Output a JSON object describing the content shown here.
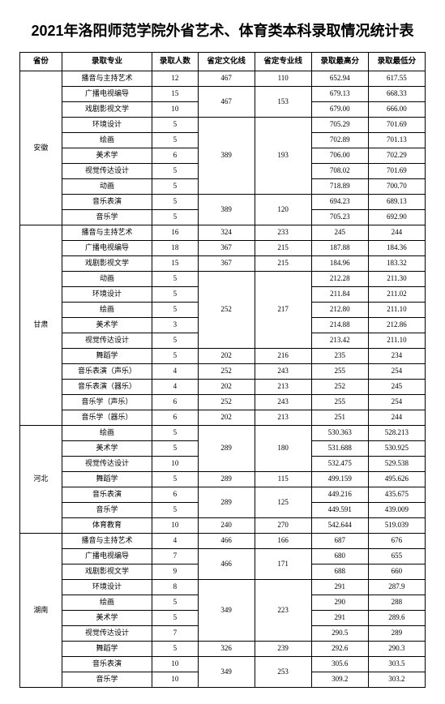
{
  "title": "2021年洛阳师范学院外省艺术、体育类本科录取情况统计表",
  "headers": {
    "province": "省份",
    "major": "录取专业",
    "count": "录取人数",
    "culture": "省定文化线",
    "pro": "省定专业线",
    "high": "录取最高分",
    "low": "录取最低分"
  },
  "provinces": {
    "anhui": "安徽",
    "gansu": "甘肃",
    "hebei": "河北",
    "hunan": "湖南"
  },
  "anhui": [
    {
      "major": "播音与主持艺术",
      "count": "12",
      "culture": "467",
      "pro": "110",
      "high": "652.94",
      "low": "617.55"
    },
    {
      "major": "广播电视编导",
      "count": "15",
      "culture": "467",
      "pro": "153",
      "high": "679.13",
      "low": "668.33"
    },
    {
      "major": "戏剧影视文学",
      "count": "10",
      "culture": "",
      "pro": "",
      "high": "679.00",
      "low": "666.00"
    },
    {
      "major": "环境设计",
      "count": "5",
      "culture": "389",
      "pro": "193",
      "high": "705.29",
      "low": "701.69"
    },
    {
      "major": "绘画",
      "count": "5",
      "culture": "",
      "pro": "",
      "high": "702.89",
      "low": "701.13"
    },
    {
      "major": "美术学",
      "count": "6",
      "culture": "",
      "pro": "",
      "high": "706.00",
      "low": "702.29"
    },
    {
      "major": "视觉传达设计",
      "count": "5",
      "culture": "",
      "pro": "",
      "high": "708.02",
      "low": "701.69"
    },
    {
      "major": "动画",
      "count": "5",
      "culture": "",
      "pro": "",
      "high": "718.89",
      "low": "700.70"
    },
    {
      "major": "音乐表演",
      "count": "5",
      "culture": "389",
      "pro": "120",
      "high": "694.23",
      "low": "689.13"
    },
    {
      "major": "音乐学",
      "count": "5",
      "culture": "",
      "pro": "",
      "high": "705.23",
      "low": "692.90"
    }
  ],
  "gansu": [
    {
      "major": "播音与主持艺术",
      "count": "16",
      "culture": "324",
      "pro": "233",
      "high": "245",
      "low": "244"
    },
    {
      "major": "广播电视编导",
      "count": "18",
      "culture": "367",
      "pro": "215",
      "high": "187.88",
      "low": "184.36"
    },
    {
      "major": "戏剧影视文学",
      "count": "15",
      "culture": "367",
      "pro": "215",
      "high": "184.96",
      "low": "183.32"
    },
    {
      "major": "动画",
      "count": "5",
      "culture": "252",
      "pro": "217",
      "high": "212.28",
      "low": "211.30"
    },
    {
      "major": "环境设计",
      "count": "5",
      "culture": "",
      "pro": "",
      "high": "211.84",
      "low": "211.02"
    },
    {
      "major": "绘画",
      "count": "5",
      "culture": "",
      "pro": "",
      "high": "212.80",
      "low": "211.10"
    },
    {
      "major": "美术学",
      "count": "3",
      "culture": "",
      "pro": "",
      "high": "214.88",
      "low": "212.86"
    },
    {
      "major": "视觉传达设计",
      "count": "5",
      "culture": "",
      "pro": "",
      "high": "213.42",
      "low": "211.10"
    },
    {
      "major": "舞蹈学",
      "count": "5",
      "culture": "202",
      "pro": "216",
      "high": "235",
      "low": "234"
    },
    {
      "major": "音乐表演（声乐）",
      "count": "4",
      "culture": "252",
      "pro": "243",
      "high": "255",
      "low": "254"
    },
    {
      "major": "音乐表演（器乐）",
      "count": "4",
      "culture": "202",
      "pro": "213",
      "high": "252",
      "low": "245"
    },
    {
      "major": "音乐学（声乐）",
      "count": "6",
      "culture": "252",
      "pro": "243",
      "high": "255",
      "low": "254"
    },
    {
      "major": "音乐学（器乐）",
      "count": "6",
      "culture": "202",
      "pro": "213",
      "high": "251",
      "low": "244"
    }
  ],
  "hebei": [
    {
      "major": "绘画",
      "count": "5",
      "culture": "289",
      "pro": "180",
      "high": "530.363",
      "low": "528.213"
    },
    {
      "major": "美术学",
      "count": "5",
      "culture": "",
      "pro": "",
      "high": "531.688",
      "low": "530.925"
    },
    {
      "major": "视觉传达设计",
      "count": "10",
      "culture": "",
      "pro": "",
      "high": "532.475",
      "low": "529.538"
    },
    {
      "major": "舞蹈学",
      "count": "5",
      "culture": "289",
      "pro": "115",
      "high": "499.159",
      "low": "495.626"
    },
    {
      "major": "音乐表演",
      "count": "6",
      "culture": "289",
      "pro": "125",
      "high": "449.216",
      "low": "435.675"
    },
    {
      "major": "音乐学",
      "count": "5",
      "culture": "",
      "pro": "",
      "high": "449.591",
      "low": "439.009"
    },
    {
      "major": "体育教育",
      "count": "10",
      "culture": "240",
      "pro": "270",
      "high": "542.644",
      "low": "519.039"
    }
  ],
  "hunan": [
    {
      "major": "播音与主持艺术",
      "count": "4",
      "culture": "466",
      "pro": "166",
      "high": "687",
      "low": "676"
    },
    {
      "major": "广播电视编导",
      "count": "7",
      "culture": "466",
      "pro": "171",
      "high": "680",
      "low": "655"
    },
    {
      "major": "戏剧影视文学",
      "count": "9",
      "culture": "",
      "pro": "",
      "high": "688",
      "low": "660"
    },
    {
      "major": "环境设计",
      "count": "8",
      "culture": "349",
      "pro": "223",
      "high": "291",
      "low": "287.9"
    },
    {
      "major": "绘画",
      "count": "5",
      "culture": "",
      "pro": "",
      "high": "290",
      "low": "288"
    },
    {
      "major": "美术学",
      "count": "5",
      "culture": "",
      "pro": "",
      "high": "291",
      "low": "289.6"
    },
    {
      "major": "视觉传达设计",
      "count": "7",
      "culture": "",
      "pro": "",
      "high": "290.5",
      "low": "289"
    },
    {
      "major": "舞蹈学",
      "count": "5",
      "culture": "326",
      "pro": "239",
      "high": "292.6",
      "low": "290.3"
    },
    {
      "major": "音乐表演",
      "count": "10",
      "culture": "349",
      "pro": "253",
      "high": "305.6",
      "low": "303.5"
    },
    {
      "major": "音乐学",
      "count": "10",
      "culture": "",
      "pro": "",
      "high": "309.2",
      "low": "303.2"
    }
  ]
}
